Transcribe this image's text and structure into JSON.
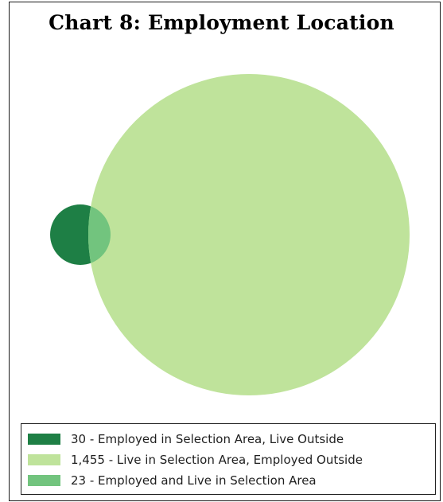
{
  "chart_data": {
    "type": "venn",
    "title": "Chart 8: Employment Location",
    "sets": [
      {
        "name": "30 - Employed in Selection Area, Live Outside",
        "value": 30,
        "color": "#1e7f45"
      },
      {
        "name": "1,455 - Live in Selection Area, Employed Outside",
        "value": 1455,
        "color": "#bfe39b"
      },
      {
        "name": "23 - Employed and Live in Selection Area",
        "value": 23,
        "color": "#72c47e"
      }
    ],
    "legend_position": "bottom"
  }
}
